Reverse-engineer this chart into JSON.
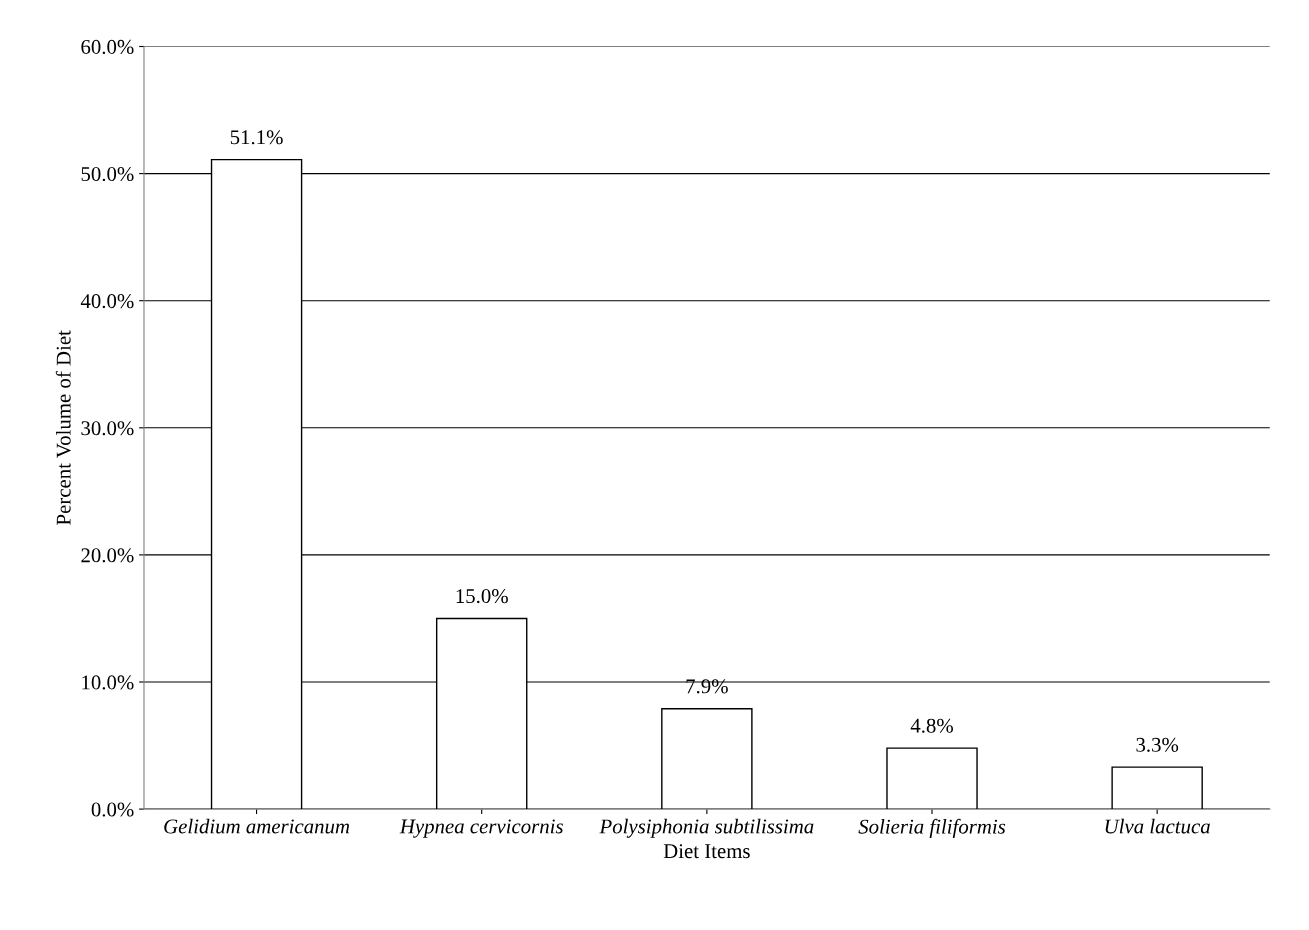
{
  "chart_data": {
    "type": "bar",
    "xlabel": "Diet Items",
    "ylabel": "Percent Volume of Diet",
    "categories": [
      "Gelidium americanum",
      "Hypnea cervicornis",
      "Polysiphonia subtilissima",
      "Solieria filiformis",
      "Ulva lactuca"
    ],
    "values": [
      51.1,
      15.0,
      7.9,
      4.8,
      3.3
    ],
    "value_labels": [
      "51.1%",
      "15.0%",
      "7.9%",
      "4.8%",
      "3.3%"
    ],
    "color": "#ffffff",
    "ylim": [
      0,
      60
    ],
    "yticks": [
      {
        "value": 0,
        "label": "0.0%"
      },
      {
        "value": 10,
        "label": "10.0%"
      },
      {
        "value": 20,
        "label": "20.0%"
      },
      {
        "value": 30,
        "label": "30.0%"
      },
      {
        "value": 40,
        "label": "40.0%"
      },
      {
        "value": 50,
        "label": "50.0%"
      },
      {
        "value": 60,
        "label": "60.0%"
      }
    ],
    "grid": "y",
    "legend": false
  }
}
